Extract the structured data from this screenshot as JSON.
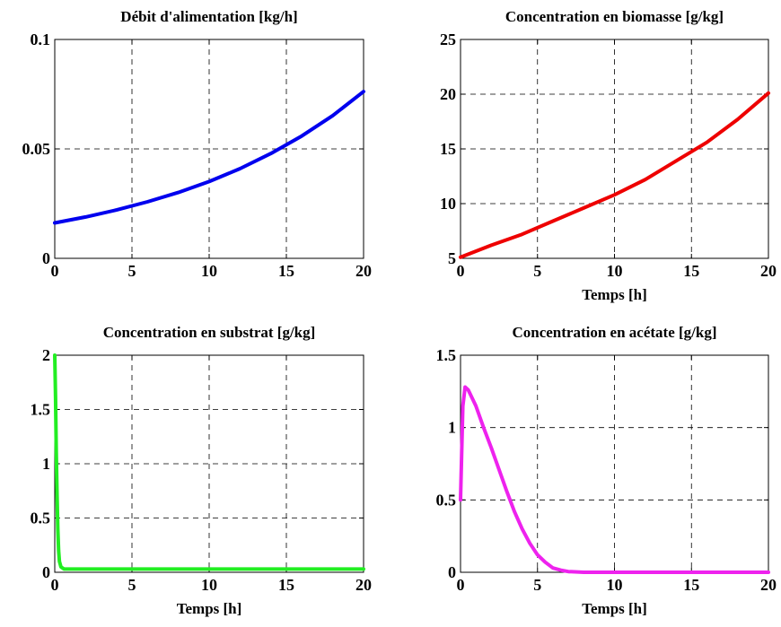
{
  "chart_data": [
    {
      "type": "line",
      "title": "Débit d'alimentation [kg/h]",
      "xlabel": "",
      "ylabel": "",
      "xlim": [
        0,
        20
      ],
      "ylim": [
        0,
        0.1
      ],
      "xticks": [
        0,
        5,
        10,
        15,
        20
      ],
      "xtick_labels": [
        "0",
        "5",
        "10",
        "15",
        "20"
      ],
      "yticks": [
        0,
        0.05,
        0.1
      ],
      "ytick_labels": [
        "0",
        "0.05",
        "0.1"
      ],
      "grid": true,
      "series": [
        {
          "color": "#0000ee",
          "x": [
            0,
            2,
            4,
            6,
            8,
            10,
            12,
            14,
            16,
            18,
            20
          ],
          "y": [
            0.0162,
            0.0189,
            0.0221,
            0.0258,
            0.0301,
            0.0351,
            0.041,
            0.0479,
            0.0559,
            0.0652,
            0.0762
          ]
        }
      ]
    },
    {
      "type": "line",
      "title": "Concentration en biomasse [g/kg]",
      "xlabel": "Temps [h]",
      "ylabel": "",
      "xlim": [
        0,
        20
      ],
      "ylim": [
        5,
        25
      ],
      "xticks": [
        0,
        5,
        10,
        15,
        20
      ],
      "xtick_labels": [
        "0",
        "5",
        "10",
        "15",
        "20"
      ],
      "yticks": [
        5,
        10,
        15,
        20,
        25
      ],
      "ytick_labels": [
        "5",
        "10",
        "15",
        "20",
        "25"
      ],
      "grid": true,
      "series": [
        {
          "color": "#ee0000",
          "x": [
            0,
            2,
            4,
            6,
            8,
            10,
            12,
            14,
            16,
            18,
            20
          ],
          "y": [
            5.1,
            6.2,
            7.2,
            8.4,
            9.6,
            10.8,
            12.2,
            13.9,
            15.6,
            17.7,
            20.1
          ]
        }
      ]
    },
    {
      "type": "line",
      "title": "Concentration en substrat [g/kg]",
      "xlabel": "Temps [h]",
      "ylabel": "",
      "xlim": [
        0,
        20
      ],
      "ylim": [
        0,
        2
      ],
      "xticks": [
        0,
        5,
        10,
        15,
        20
      ],
      "xtick_labels": [
        "0",
        "5",
        "10",
        "15",
        "20"
      ],
      "yticks": [
        0,
        0.5,
        1,
        1.5,
        2
      ],
      "ytick_labels": [
        "0",
        "0.5",
        "1",
        "1.5",
        "2"
      ],
      "grid": true,
      "series": [
        {
          "color": "#22ee22",
          "x": [
            0,
            0.05,
            0.1,
            0.15,
            0.2,
            0.25,
            0.3,
            0.4,
            0.6,
            1,
            5,
            10,
            15,
            20
          ],
          "y": [
            2.0,
            1.6,
            1.1,
            0.7,
            0.4,
            0.2,
            0.1,
            0.05,
            0.03,
            0.03,
            0.03,
            0.03,
            0.03,
            0.03
          ]
        }
      ]
    },
    {
      "type": "line",
      "title": "Concentration en acétate [g/kg]",
      "xlabel": "Temps [h]",
      "ylabel": "",
      "xlim": [
        0,
        20
      ],
      "ylim": [
        0,
        1.5
      ],
      "xticks": [
        0,
        5,
        10,
        15,
        20
      ],
      "xtick_labels": [
        "0",
        "5",
        "10",
        "15",
        "20"
      ],
      "yticks": [
        0,
        0.5,
        1,
        1.5
      ],
      "ytick_labels": [
        "0",
        "0.5",
        "1",
        "1.5"
      ],
      "grid": true,
      "series": [
        {
          "color": "#ee22ee",
          "x": [
            0,
            0.15,
            0.3,
            0.5,
            1,
            1.5,
            2,
            2.5,
            3,
            3.5,
            4,
            4.5,
            5,
            5.5,
            6,
            6.5,
            7,
            8,
            10,
            15,
            20
          ],
          "y": [
            0.5,
            1.15,
            1.28,
            1.26,
            1.15,
            1.0,
            0.86,
            0.71,
            0.56,
            0.42,
            0.3,
            0.2,
            0.12,
            0.07,
            0.03,
            0.015,
            0.005,
            0.0,
            0.0,
            0.0,
            0.0
          ]
        }
      ]
    }
  ]
}
